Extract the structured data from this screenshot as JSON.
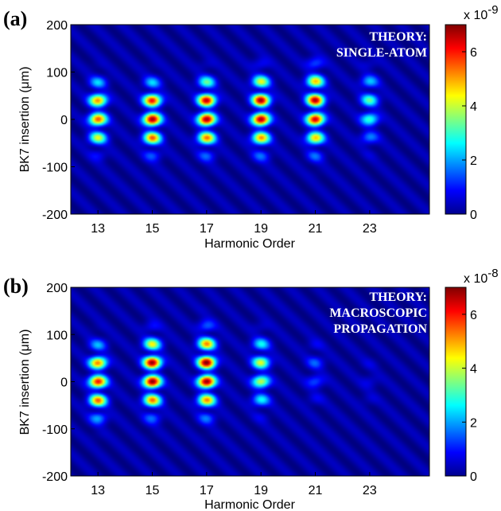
{
  "chart_data": [
    {
      "type": "heatmap",
      "panel_label": "(a)",
      "annotation": [
        "THEORY:",
        "SINGLE-ATOM"
      ],
      "xlabel": "Harmonic Order",
      "ylabel": "BK7 insertion (μm)",
      "xticks": [
        "13",
        "15",
        "17",
        "19",
        "21",
        "23"
      ],
      "xtick_values": [
        13,
        15,
        17,
        19,
        21,
        23
      ],
      "yticks": [
        "-200",
        "-100",
        "0",
        "100",
        "200"
      ],
      "ytick_values": [
        -200,
        -100,
        0,
        100,
        200
      ],
      "xlim": [
        12,
        25.2
      ],
      "ylim": [
        -200,
        200
      ],
      "colorbar": {
        "ticks": [
          "0",
          "2",
          "4",
          "6"
        ],
        "tick_values": [
          0,
          2,
          4,
          6
        ],
        "range": [
          0,
          7
        ],
        "multiplier_base": "x 10",
        "multiplier_exp": "-9"
      },
      "colormap": "jet",
      "harmonic_peaks": [
        {
          "order": 13,
          "center_um": 10,
          "half_height_um": 70,
          "max": 5.5
        },
        {
          "order": 15,
          "center_um": 5,
          "half_height_um": 70,
          "max": 6.8
        },
        {
          "order": 17,
          "center_um": 10,
          "half_height_um": 75,
          "max": 6.8
        },
        {
          "order": 19,
          "center_um": 15,
          "half_height_um": 80,
          "max": 6.8
        },
        {
          "order": 21,
          "center_um": 20,
          "half_height_um": 85,
          "max": 6.5
        },
        {
          "order": 23,
          "center_um": 25,
          "half_height_um": 75,
          "max": 3.0
        }
      ]
    },
    {
      "type": "heatmap",
      "panel_label": "(b)",
      "annotation": [
        "THEORY:",
        "MACROSCOPIC",
        "PROPAGATION"
      ],
      "xlabel": "Harmonic Order",
      "ylabel": "BK7 insertion (μm)",
      "xticks": [
        "13",
        "15",
        "17",
        "19",
        "21",
        "23"
      ],
      "xtick_values": [
        13,
        15,
        17,
        19,
        21,
        23
      ],
      "yticks": [
        "-200",
        "-100",
        "0",
        "100",
        "200"
      ],
      "ytick_values": [
        -200,
        -100,
        0,
        100,
        200
      ],
      "xlim": [
        12,
        25.2
      ],
      "ylim": [
        -200,
        200
      ],
      "colorbar": {
        "ticks": [
          "0",
          "2",
          "4",
          "6"
        ],
        "tick_values": [
          0,
          2,
          4,
          6
        ],
        "range": [
          0,
          7
        ],
        "multiplier_base": "x 10",
        "multiplier_exp": "-8"
      },
      "colormap": "jet",
      "harmonic_peaks": [
        {
          "order": 13,
          "center_um": 0,
          "half_height_um": 75,
          "max": 6.0
        },
        {
          "order": 15,
          "center_um": 15,
          "half_height_um": 80,
          "max": 7.0
        },
        {
          "order": 17,
          "center_um": 20,
          "half_height_um": 85,
          "max": 7.0
        },
        {
          "order": 19,
          "center_um": 20,
          "half_height_um": 75,
          "max": 4.0
        },
        {
          "order": 21,
          "center_um": 20,
          "half_height_um": 60,
          "max": 1.3
        },
        {
          "order": 23,
          "center_um": 0,
          "half_height_um": 50,
          "max": 0.5
        }
      ]
    }
  ]
}
